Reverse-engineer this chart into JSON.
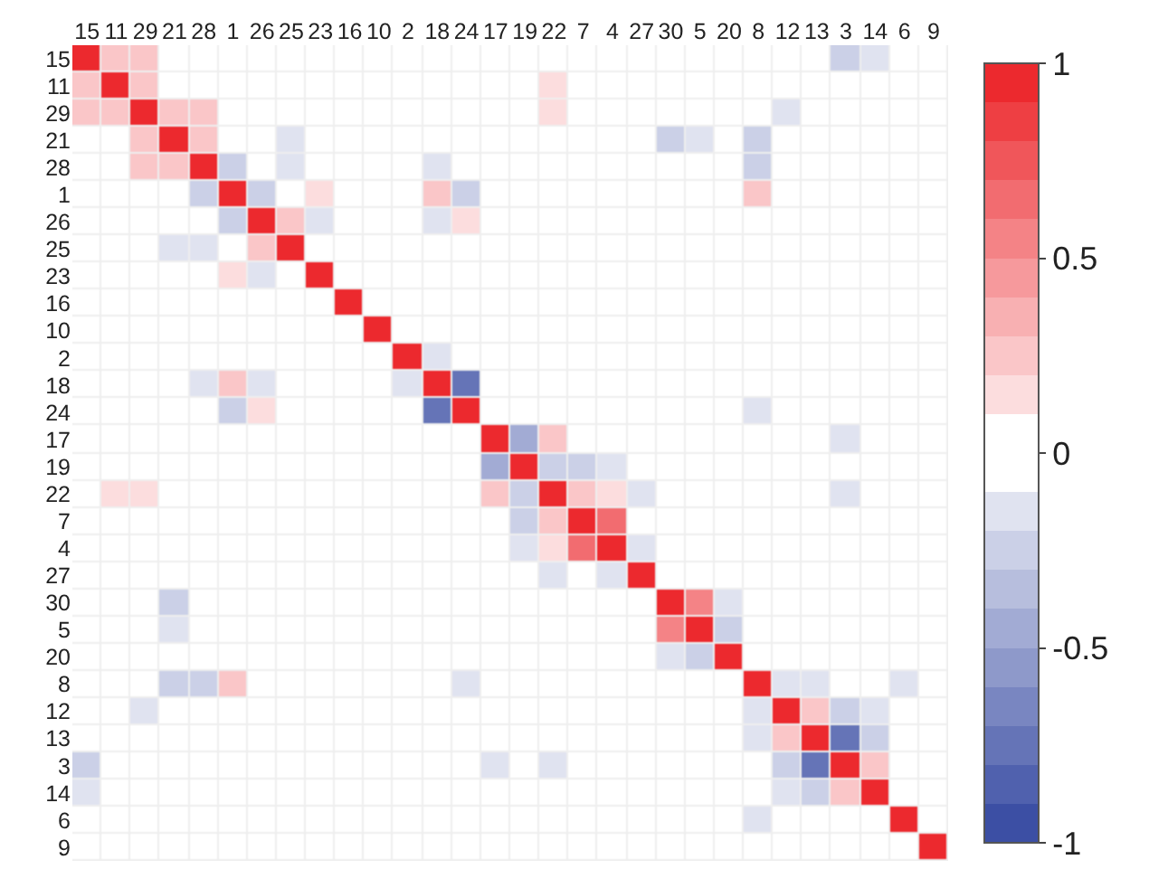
{
  "chart_data": {
    "type": "heatmap",
    "categories": [
      "15",
      "11",
      "29",
      "21",
      "28",
      "1",
      "26",
      "25",
      "23",
      "16",
      "10",
      "2",
      "18",
      "24",
      "17",
      "19",
      "22",
      "7",
      "4",
      "27",
      "30",
      "5",
      "20",
      "8",
      "12",
      "13",
      "3",
      "14",
      "6",
      "9"
    ],
    "y_categories": [
      "15",
      "11",
      "29",
      "21",
      "28",
      "1",
      "26",
      "25",
      "23",
      "16",
      "10",
      "2",
      "18",
      "24",
      "17",
      "19",
      "22",
      "7",
      "4",
      "27",
      "30",
      "5",
      "20",
      "8",
      "12",
      "13",
      "3",
      "14",
      "6",
      "9"
    ],
    "cells": [
      [
        1,
        0.3,
        0.2,
        0,
        0,
        0,
        0,
        0,
        0,
        0,
        0,
        0,
        0,
        0,
        0,
        0,
        0,
        0,
        0,
        0,
        0,
        0,
        0,
        0,
        0,
        0.1,
        -0.2,
        -0.1,
        0,
        0
      ],
      [
        0.3,
        1,
        0.2,
        0,
        0,
        0,
        0,
        0,
        0,
        0,
        0,
        0,
        0,
        0,
        0,
        0,
        0.15,
        0,
        0,
        0,
        0,
        0,
        0,
        0,
        0,
        0,
        0,
        0,
        0,
        0
      ],
      [
        0.2,
        0.2,
        1,
        0.2,
        0.2,
        0,
        0,
        0,
        0,
        0,
        0,
        0,
        0,
        0,
        0,
        0,
        0.15,
        0,
        0,
        0,
        0,
        0,
        0,
        0,
        -0.1,
        0,
        0,
        0,
        0,
        0
      ],
      [
        0,
        0,
        0.2,
        1,
        0.3,
        0,
        0,
        -0.1,
        0,
        0,
        0,
        0,
        0,
        0,
        0,
        0,
        0,
        0,
        0,
        0,
        -0.2,
        -0.1,
        0,
        -0.25,
        0,
        0,
        0,
        0.1,
        0,
        0
      ],
      [
        0,
        0,
        0.2,
        0.3,
        1,
        -0.2,
        0,
        -0.15,
        0,
        0,
        0,
        0,
        -0.1,
        0.1,
        0,
        0,
        0,
        0,
        0,
        0,
        0,
        0,
        0,
        -0.3,
        0,
        0,
        0,
        0,
        0,
        0
      ],
      [
        0,
        0,
        0,
        0,
        -0.2,
        1,
        -0.3,
        0,
        0.15,
        0,
        0,
        0,
        0.2,
        -0.2,
        0,
        0,
        0,
        0,
        0,
        0,
        0,
        0,
        0,
        0.2,
        0,
        0,
        0,
        0,
        0,
        0
      ],
      [
        0,
        0,
        0,
        0,
        0,
        -0.3,
        1,
        0.25,
        -0.1,
        0,
        0,
        0,
        -0.1,
        0.15,
        0,
        0,
        0,
        0,
        0,
        0,
        0,
        0,
        0,
        0,
        0,
        0,
        0,
        0,
        0,
        0
      ],
      [
        0,
        0,
        0,
        -0.1,
        -0.15,
        0,
        0.25,
        1,
        0,
        0,
        0,
        0,
        0,
        0,
        0,
        0,
        0,
        0,
        0,
        0,
        0,
        0,
        0,
        0,
        0,
        0,
        0,
        0,
        0,
        0
      ],
      [
        0,
        0,
        0,
        0,
        0,
        0.15,
        -0.1,
        0,
        1,
        0,
        0,
        0,
        0,
        0,
        0,
        0,
        0,
        0,
        0,
        0,
        0,
        0,
        0,
        0,
        0,
        0,
        0,
        0,
        0,
        0
      ],
      [
        0,
        0,
        0,
        0,
        0,
        0,
        0,
        0,
        0,
        1,
        0,
        0,
        0,
        0,
        0,
        0,
        0,
        0,
        0,
        0,
        0,
        0,
        0,
        0,
        0,
        0,
        0,
        0,
        0,
        0
      ],
      [
        0,
        0,
        0,
        0,
        0,
        0,
        0,
        0,
        0,
        0,
        1,
        0,
        0,
        0,
        0,
        0,
        0,
        0,
        0,
        0,
        0,
        0,
        0,
        0,
        0,
        0,
        0,
        0,
        0,
        0
      ],
      [
        0,
        0,
        0,
        0,
        0,
        0,
        0,
        0,
        0,
        0,
        0,
        1,
        -0.1,
        0,
        0,
        0,
        0,
        0,
        0,
        0,
        0,
        0,
        0,
        0,
        0,
        0,
        0,
        0,
        0,
        0
      ],
      [
        0,
        0,
        0,
        0,
        -0.1,
        0.2,
        -0.1,
        0,
        0,
        0,
        0,
        -0.1,
        1,
        -0.75,
        0,
        0,
        0,
        0,
        0,
        0,
        0,
        0,
        0,
        0,
        0,
        0,
        0,
        0,
        0,
        0
      ],
      [
        0,
        0,
        0,
        0,
        0.1,
        -0.2,
        0.15,
        0,
        0,
        0,
        0,
        0,
        -0.75,
        1,
        0,
        0,
        0,
        0,
        0,
        0,
        0,
        0,
        0,
        -0.1,
        0,
        0,
        0,
        0,
        0,
        0
      ],
      [
        0,
        0,
        0,
        0,
        0,
        0,
        0,
        0,
        0,
        0,
        0,
        0,
        0,
        0,
        1,
        -0.5,
        0.25,
        0,
        0,
        0,
        0,
        0,
        0,
        0,
        0,
        0,
        -0.1,
        0,
        0,
        0
      ],
      [
        0,
        0,
        0,
        0,
        0,
        0,
        0,
        0,
        0,
        0,
        0,
        0,
        0,
        0,
        -0.5,
        1,
        -0.3,
        -0.25,
        -0.1,
        0,
        0,
        0,
        0,
        0,
        0,
        0,
        0.1,
        0.1,
        0,
        0
      ],
      [
        0,
        0.15,
        0.15,
        0,
        0,
        0,
        0,
        0,
        0,
        0,
        0,
        0,
        0,
        0,
        0.25,
        -0.3,
        1,
        0.3,
        0.15,
        -0.1,
        0,
        0,
        0,
        0,
        0,
        0,
        -0.1,
        0,
        0,
        0
      ],
      [
        0,
        0,
        0,
        0,
        0,
        0,
        0,
        0,
        0,
        0,
        0,
        0,
        0,
        0,
        0,
        -0.25,
        0.3,
        1,
        0.65,
        0,
        0,
        0,
        0,
        0,
        0,
        0,
        0,
        0,
        0,
        0
      ],
      [
        0,
        0,
        0,
        0,
        0,
        0,
        0,
        0,
        0,
        0,
        0,
        0,
        0,
        0,
        0,
        -0.1,
        0.15,
        0.65,
        1,
        -0.1,
        0,
        0,
        0,
        0,
        0,
        0,
        0,
        0,
        0,
        0
      ],
      [
        0,
        0,
        0,
        0,
        0,
        0,
        0,
        0,
        0,
        0,
        0,
        0,
        0,
        0,
        0,
        0,
        -0.1,
        0,
        -0.1,
        1,
        0,
        0,
        0,
        0,
        0,
        0,
        0,
        0,
        0,
        0
      ],
      [
        0,
        0,
        0,
        -0.2,
        0,
        0,
        0,
        0,
        0,
        0,
        0,
        0,
        0,
        0,
        0,
        0,
        0,
        0,
        0,
        0,
        1,
        0.5,
        -0.1,
        0,
        0,
        0,
        0,
        0,
        0,
        0
      ],
      [
        0,
        0,
        0,
        -0.1,
        0,
        0,
        0,
        0,
        0,
        0,
        0,
        0,
        0,
        0,
        0,
        0,
        0,
        0,
        0,
        0,
        0.5,
        1,
        -0.3,
        0,
        0,
        0,
        0,
        0,
        0,
        0
      ],
      [
        0,
        0,
        0,
        0,
        0,
        0,
        0,
        0,
        0,
        0,
        0,
        0,
        0,
        0,
        0,
        0,
        0,
        0,
        0,
        0,
        -0.1,
        -0.3,
        1,
        0.1,
        0,
        0,
        0,
        0,
        0,
        0
      ],
      [
        0,
        0,
        0,
        -0.25,
        -0.3,
        0.2,
        0,
        0,
        0,
        0,
        0,
        0,
        0,
        -0.1,
        0,
        0,
        0,
        0,
        0,
        0,
        0,
        0,
        0.1,
        1,
        -0.1,
        -0.1,
        0,
        0,
        -0.1,
        0
      ],
      [
        0,
        0,
        -0.1,
        0,
        0,
        0,
        0,
        0,
        0,
        0,
        0,
        0,
        0,
        0,
        0,
        0,
        0,
        0,
        0,
        0,
        0,
        0,
        0,
        -0.1,
        1,
        0.25,
        -0.3,
        -0.15,
        0,
        0
      ],
      [
        0.1,
        0,
        0,
        0,
        0,
        0,
        0,
        0,
        0,
        0,
        0,
        0,
        0,
        0,
        0,
        0,
        0,
        0,
        0,
        0,
        0,
        0,
        0,
        -0.1,
        0.25,
        1,
        -0.75,
        -0.2,
        0,
        0
      ],
      [
        -0.2,
        0,
        0,
        0,
        0,
        0,
        0,
        0,
        0,
        0,
        0,
        0,
        0,
        0,
        -0.1,
        0.1,
        -0.1,
        0,
        0,
        0,
        0,
        0,
        0,
        0,
        -0.3,
        -0.75,
        1,
        0.3,
        0,
        0
      ],
      [
        -0.1,
        0,
        0,
        0.1,
        0,
        0,
        0,
        0,
        0,
        0,
        0,
        0,
        0,
        0,
        0,
        0.1,
        0,
        0,
        0,
        0,
        0,
        0,
        0,
        0,
        -0.15,
        -0.2,
        0.3,
        1,
        0.1,
        0
      ],
      [
        0,
        0,
        0,
        0,
        0,
        0,
        0,
        0,
        0,
        0,
        0,
        0,
        0,
        0,
        0,
        0,
        0,
        0,
        0,
        0,
        0,
        0,
        0,
        -0.1,
        0,
        0,
        0,
        0.1,
        1,
        0
      ],
      [
        0,
        0,
        0,
        0,
        0,
        0,
        0,
        0,
        0,
        0,
        0,
        0,
        0,
        0,
        0,
        0,
        0,
        0,
        0,
        0,
        0,
        0,
        0,
        0,
        0,
        0,
        0,
        0,
        0,
        1
      ]
    ],
    "clim": [
      -1,
      1
    ],
    "cticks": [
      -1,
      -0.5,
      0,
      0.5,
      1
    ]
  }
}
